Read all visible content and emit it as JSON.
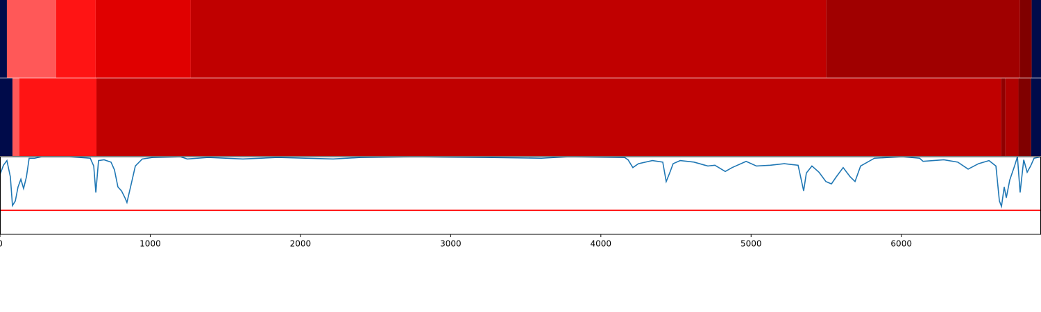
{
  "chart_data": {
    "type": "line",
    "xlim": [
      0,
      6930
    ],
    "xticks": [
      0,
      1000,
      2000,
      3000,
      4000,
      5000,
      6000
    ],
    "strips": [
      {
        "bounds": [
          0,
          46,
          374,
          637,
          1270,
          5501,
          6790,
          6868,
          6930
        ],
        "colors": [
          "#000b4a",
          "#ff5858",
          "#ff1414",
          "#e00000",
          "#c00000",
          "#a00000",
          "#800000",
          "#000b4a"
        ]
      },
      {
        "bounds": [
          0,
          83,
          129,
          642,
          6665,
          6693,
          6780,
          6864,
          6930
        ],
        "colors": [
          "#000b4a",
          "#ff5858",
          "#ff1414",
          "#c00000",
          "#900000",
          "#b00000",
          "#800000",
          "#000b4a"
        ]
      }
    ],
    "x": [
      0,
      23,
      46,
      69,
      83,
      102,
      120,
      139,
      157,
      176,
      194,
      231,
      277,
      370,
      462,
      601,
      624,
      638,
      656,
      693,
      739,
      762,
      785,
      809,
      832,
      845,
      869,
      901,
      947,
      1016,
      1201,
      1247,
      1386,
      1617,
      1848,
      2218,
      2402,
      2772,
      3234,
      3604,
      3788,
      4158,
      4181,
      4213,
      4250,
      4343,
      4412,
      4435,
      4458,
      4481,
      4528,
      4620,
      4712,
      4759,
      4828,
      4874,
      4967,
      5036,
      5128,
      5221,
      5313,
      5350,
      5368,
      5405,
      5452,
      5498,
      5535,
      5567,
      5613,
      5660,
      5692,
      5729,
      5821,
      6006,
      6122,
      6145,
      6283,
      6376,
      6445,
      6514,
      6584,
      6630,
      6653,
      6667,
      6685,
      6699,
      6722,
      6754,
      6773,
      6791,
      6815,
      6838,
      6861,
      6884,
      6930
    ],
    "series": [
      {
        "color": "#1f77b4",
        "values": [
          0.77,
          0.89,
          0.95,
          0.74,
          0.37,
          0.43,
          0.61,
          0.71,
          0.59,
          0.74,
          0.98,
          0.98,
          1.0,
          1.0,
          1.0,
          0.98,
          0.88,
          0.54,
          0.95,
          0.96,
          0.93,
          0.83,
          0.61,
          0.56,
          0.47,
          0.41,
          0.61,
          0.88,
          0.97,
          0.99,
          1.0,
          0.97,
          0.99,
          0.97,
          0.99,
          0.97,
          0.99,
          1.0,
          0.99,
          0.98,
          1.0,
          0.99,
          0.96,
          0.86,
          0.91,
          0.95,
          0.93,
          0.68,
          0.79,
          0.91,
          0.95,
          0.93,
          0.88,
          0.89,
          0.81,
          0.86,
          0.94,
          0.88,
          0.89,
          0.91,
          0.89,
          0.56,
          0.79,
          0.88,
          0.8,
          0.68,
          0.65,
          0.74,
          0.86,
          0.74,
          0.68,
          0.88,
          0.98,
          1.0,
          0.98,
          0.94,
          0.96,
          0.93,
          0.84,
          0.91,
          0.95,
          0.88,
          0.43,
          0.36,
          0.61,
          0.47,
          0.7,
          0.88,
          1.0,
          0.54,
          0.96,
          0.8,
          0.88,
          0.98,
          1.0
        ]
      }
    ],
    "ylim": [
      0,
      1
    ],
    "threshold": {
      "value": 0.31,
      "color": "#ff0000"
    }
  }
}
